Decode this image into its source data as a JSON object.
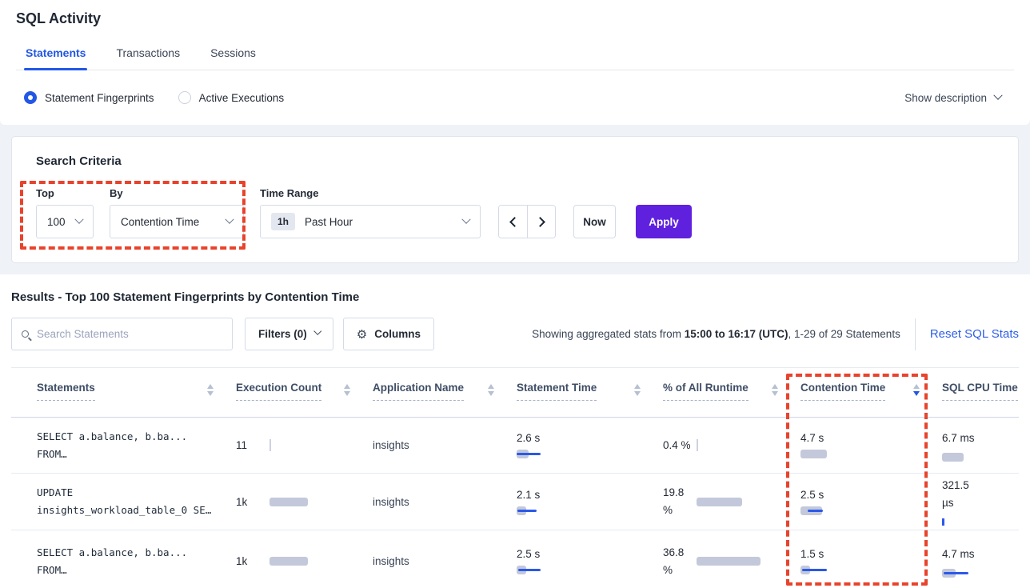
{
  "header": {
    "title": "SQL Activity",
    "tabs": [
      {
        "label": "Statements",
        "active": true
      },
      {
        "label": "Transactions",
        "active": false
      },
      {
        "label": "Sessions",
        "active": false
      }
    ]
  },
  "view_toggle": {
    "options": [
      {
        "label": "Statement Fingerprints",
        "selected": true
      },
      {
        "label": "Active Executions",
        "selected": false
      }
    ],
    "show_description_label": "Show description"
  },
  "search_criteria": {
    "heading": "Search Criteria",
    "top_label": "Top",
    "top_value": "100",
    "by_label": "By",
    "by_value": "Contention Time",
    "time_range_label": "Time Range",
    "time_range_badge": "1h",
    "time_range_value": "Past Hour",
    "now_label": "Now",
    "apply_label": "Apply"
  },
  "results": {
    "heading": "Results - Top 100 Statement Fingerprints by Contention Time",
    "search_placeholder": "Search Statements",
    "filters_label": "Filters (0)",
    "columns_label": "Columns",
    "columns_icon": "⚙",
    "stats_prefix": "Showing aggregated stats from ",
    "stats_bold": "15:00 to 16:17 (UTC)",
    "stats_suffix": ", 1-29 of 29 Statements",
    "reset_link": "Reset SQL Stats"
  },
  "table": {
    "columns": [
      {
        "label": "Statements",
        "sort": "none"
      },
      {
        "label": "Execution Count",
        "sort": "none"
      },
      {
        "label": "Application Name",
        "sort": "none"
      },
      {
        "label": "Statement Time",
        "sort": "none"
      },
      {
        "label": "% of All Runtime",
        "sort": "none"
      },
      {
        "label": "Contention Time",
        "sort": "desc"
      },
      {
        "label": "SQL CPU Time",
        "sort": "none"
      }
    ],
    "rows": [
      {
        "statement_line1": "SELECT a.balance, b.ba...",
        "statement_line2": "FROM…",
        "exec": {
          "value": "11",
          "bar": {
            "tick_gray": true
          }
        },
        "app": "insights",
        "stmt_time": {
          "value": "2.6 s",
          "bar": {
            "gray": 15,
            "blue": 30,
            "blue_off": 0
          }
        },
        "runtime": {
          "value": "0.4 %",
          "bar": {
            "tick_gray": true
          }
        },
        "contention": {
          "value": "4.7 s",
          "bar": {
            "gray": 33
          }
        },
        "cpu": {
          "value": "6.7 ms",
          "bar": {
            "gray": 27
          }
        }
      },
      {
        "statement_line1": "UPDATE",
        "statement_line2": "insights_workload_table_0 SE…",
        "exec": {
          "value": "1k",
          "bar": {
            "gray": 48
          }
        },
        "app": "insights",
        "stmt_time": {
          "value": "2.1 s",
          "bar": {
            "gray": 12,
            "blue": 24,
            "blue_off": 1
          }
        },
        "runtime": {
          "value": "19.8 %",
          "bar": {
            "gray": 57
          }
        },
        "contention": {
          "value": "2.5 s",
          "bar": {
            "gray": 27,
            "blue": 19,
            "blue_off": 9
          }
        },
        "cpu": {
          "value": "321.5 µs",
          "bar": {
            "tick_blue": true
          }
        }
      },
      {
        "statement_line1": "SELECT a.balance, b.ba...",
        "statement_line2": "FROM…",
        "exec": {
          "value": "1k",
          "bar": {
            "gray": 48
          }
        },
        "app": "insights",
        "stmt_time": {
          "value": "2.5 s",
          "bar": {
            "gray": 12,
            "blue": 28,
            "blue_off": 2
          }
        },
        "runtime": {
          "value": "36.8 %",
          "bar": {
            "gray": 80
          }
        },
        "contention": {
          "value": "1.5 s",
          "bar": {
            "gray": 12,
            "blue": 31,
            "blue_off": 2
          }
        },
        "cpu": {
          "value": "4.7 ms",
          "bar": {
            "gray": 17,
            "blue": 31,
            "blue_off": 2
          }
        }
      }
    ]
  },
  "colors": {
    "accent_blue": "#2257e6",
    "apply_purple": "#6021df",
    "link_blue": "#2e5fe8",
    "bar_gray": "#c3c9da",
    "bar_blue": "#2b59e8",
    "annotation_red": "#e8432c"
  }
}
